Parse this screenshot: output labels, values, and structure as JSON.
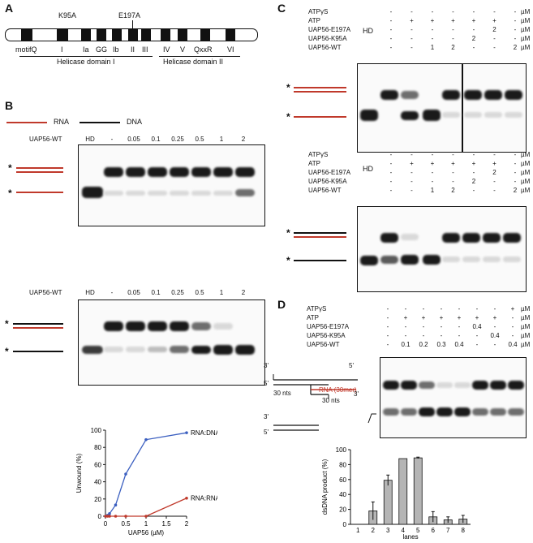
{
  "panels": {
    "A": "A",
    "B": "B",
    "C": "C",
    "D": "D"
  },
  "panelA": {
    "mutations": [
      "K95A",
      "E197A"
    ],
    "motifs": [
      "motifQ",
      "I",
      "Ia",
      "GG",
      "Ib",
      "II",
      "III",
      "IV",
      "V",
      "QxxR",
      "VI"
    ],
    "domains": [
      "Helicase domain I",
      "Helicase domain II"
    ]
  },
  "panelB": {
    "legend": {
      "rna": "RNA",
      "dna": "DNA"
    },
    "row_label": "UAP56-WT",
    "lanes": [
      "HD",
      "-",
      "0.05",
      "0.1",
      "0.25",
      "0.5",
      "1",
      "2"
    ],
    "chart_data": {
      "type": "line",
      "xlabel": "UAP56 (µM)",
      "ylabel": "Unwound (%)",
      "xlim": [
        0,
        2
      ],
      "ylim": [
        0,
        100
      ],
      "xticks": [
        "0",
        "0.5",
        "1",
        "1.5",
        "2"
      ],
      "yticks": [
        "0",
        "20",
        "40",
        "60",
        "80",
        "100"
      ],
      "series": [
        {
          "name": "RNA:DNA",
          "color": "#3b5fc0",
          "x": [
            0,
            0.05,
            0.1,
            0.25,
            0.5,
            1,
            2
          ],
          "y": [
            0,
            1,
            3,
            13,
            49,
            89,
            97
          ]
        },
        {
          "name": "RNA:RNA",
          "color": "#c0392b",
          "x": [
            0,
            0.05,
            0.1,
            0.25,
            0.5,
            1,
            2
          ],
          "y": [
            0,
            0,
            0,
            0,
            0,
            0,
            21
          ]
        }
      ]
    }
  },
  "panelC": {
    "rows": [
      "ATPγS",
      "ATP",
      "UAP56-E197A",
      "UAP56-K95A",
      "UAP56-WT"
    ],
    "unit": "µM",
    "hd": "HD",
    "values": [
      [
        "-",
        "-",
        "-",
        "-",
        "-",
        "-",
        "-",
        "+"
      ],
      [
        "-",
        "+",
        "+",
        "+",
        "+",
        "+",
        "-",
        "-"
      ],
      [
        "-",
        "-",
        "-",
        "-",
        "-",
        "2",
        "-",
        "-"
      ],
      [
        "-",
        "-",
        "-",
        "-",
        "2",
        "-",
        "-",
        "-"
      ],
      [
        "-",
        "-",
        "1",
        "2",
        "-",
        "-",
        "2",
        "2"
      ]
    ]
  },
  "panelD": {
    "rows": [
      "ATPγS",
      "ATP",
      "UAP56-E197A",
      "UAP56-K95A",
      "UAP56-WT"
    ],
    "unit": "µM",
    "values": [
      [
        "-",
        "-",
        "-",
        "-",
        "-",
        "-",
        "-",
        "+"
      ],
      [
        "-",
        "+",
        "+",
        "+",
        "+",
        "+",
        "+",
        "-"
      ],
      [
        "-",
        "-",
        "-",
        "-",
        "-",
        "0.4",
        "-",
        "-"
      ],
      [
        "-",
        "-",
        "-",
        "-",
        "-",
        "-",
        "0.4",
        "-"
      ],
      [
        "-",
        "0.1",
        "0.2",
        "0.3",
        "0.4",
        "-",
        "-",
        "0.4"
      ]
    ],
    "substrate": {
      "p3": "3'",
      "p5": "5'",
      "len1": "30 nts",
      "len2": "30 nts",
      "rna": "RNA (30mer)"
    },
    "chart_data": {
      "type": "bar",
      "xlabel": "lanes",
      "ylabel": "dsDNA product (%)",
      "categories": [
        "1",
        "2",
        "3",
        "4",
        "5",
        "6",
        "7",
        "8"
      ],
      "values": [
        0,
        18,
        59,
        88,
        89,
        10,
        6,
        7
      ],
      "errors": [
        0,
        12,
        7,
        0,
        1,
        7,
        4,
        5
      ],
      "ylim": [
        0,
        100
      ],
      "yticks": [
        "0",
        "20",
        "40",
        "60",
        "80",
        "100"
      ]
    }
  }
}
